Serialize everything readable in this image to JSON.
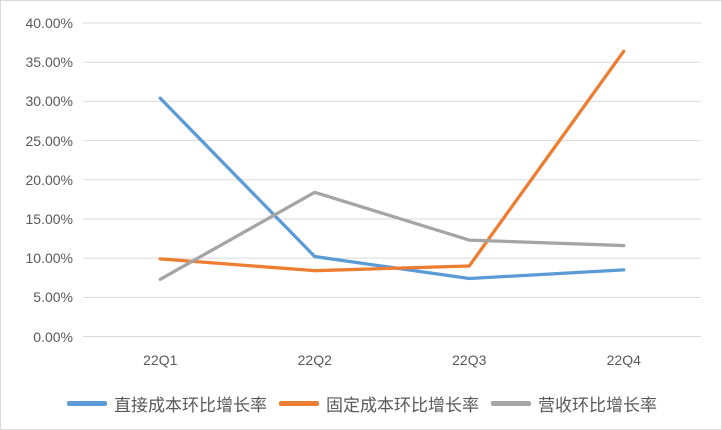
{
  "chart_data": {
    "type": "line",
    "title": "",
    "xlabel": "",
    "ylabel": "",
    "categories": [
      "22Q1",
      "22Q2",
      "22Q3",
      "22Q4"
    ],
    "series": [
      {
        "name": "直接成本环比增长率",
        "color": "#5B9BD5",
        "values": [
          30.4,
          10.2,
          7.4,
          8.5
        ]
      },
      {
        "name": "固定成本环比增长率",
        "color": "#ED7D31",
        "values": [
          9.9,
          8.4,
          9.0,
          36.4
        ]
      },
      {
        "name": "营收环比增长率",
        "color": "#A5A5A5",
        "values": [
          7.3,
          18.4,
          12.3,
          11.6
        ]
      }
    ],
    "ylim": [
      0,
      40
    ],
    "y_tick_step": 5,
    "y_tick_labels": [
      "0.00%",
      "5.00%",
      "10.00%",
      "15.00%",
      "20.00%",
      "25.00%",
      "30.00%",
      "35.00%",
      "40.00%"
    ],
    "grid": true,
    "legend_position": "bottom"
  },
  "colors": {
    "gridline": "#D9D9D9",
    "axis_text": "#595959",
    "border": "#D9D9D9",
    "background": "#FFFFFF"
  }
}
